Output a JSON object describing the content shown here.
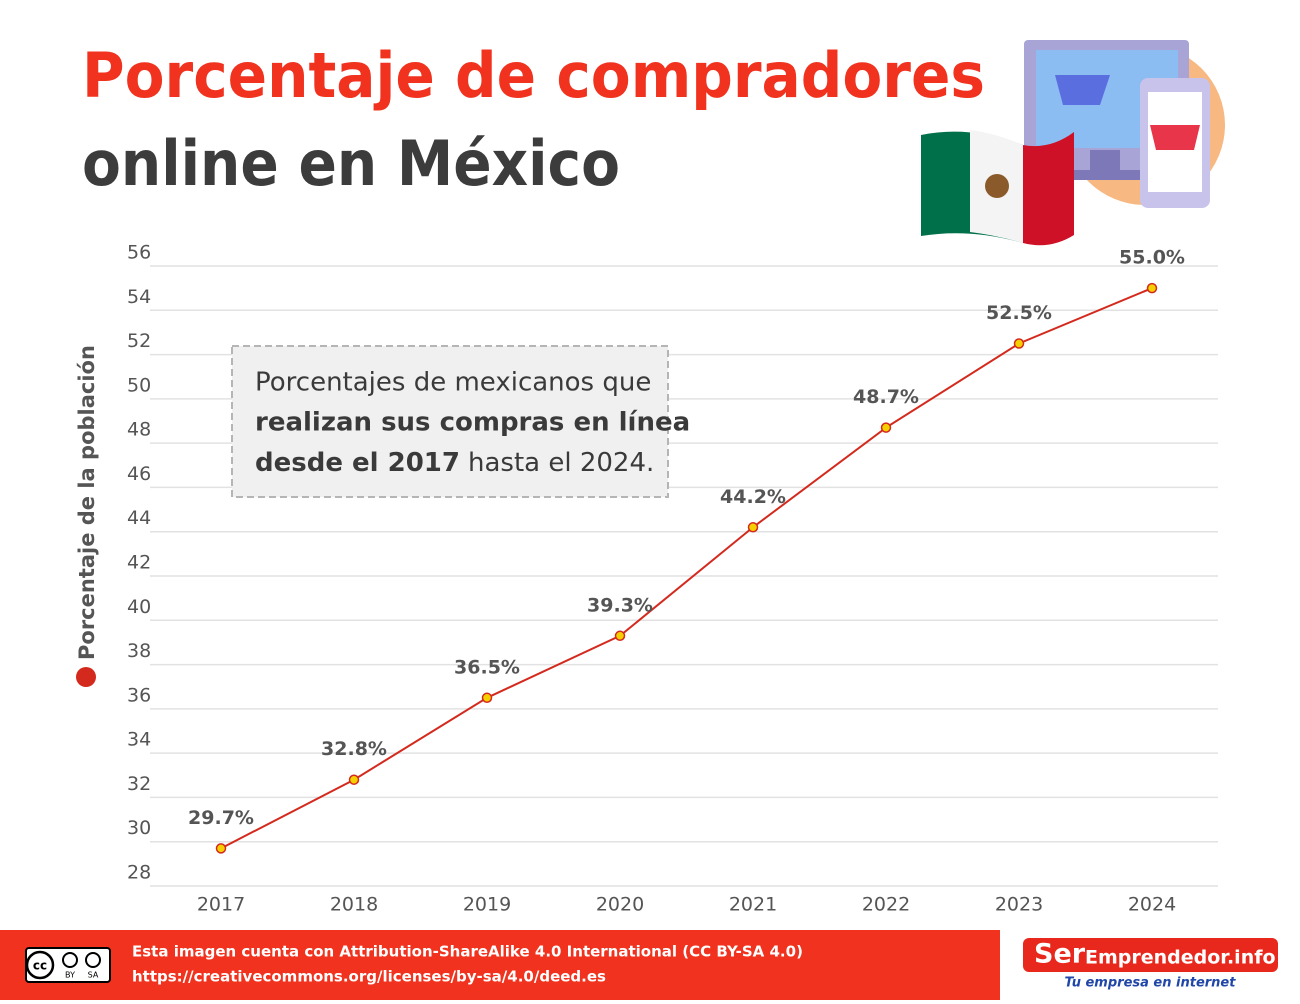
{
  "chart_data": {
    "type": "line",
    "title": "Porcentaje de compradores",
    "subtitle": "online en México",
    "categories": [
      "2017",
      "2018",
      "2019",
      "2020",
      "2021",
      "2022",
      "2023",
      "2024"
    ],
    "series": [
      {
        "name": "Porcentaje de la población",
        "color": "#d42a1e",
        "values": [
          29.7,
          32.8,
          36.5,
          39.3,
          44.2,
          48.7,
          52.5,
          55.0
        ],
        "value_labels": [
          "29.7%",
          "32.8%",
          "36.5%",
          "39.3%",
          "44.2%",
          "48.7%",
          "52.5%",
          "55.0%"
        ]
      }
    ],
    "ylim": [
      28,
      56
    ],
    "yticks": [
      28,
      30,
      32,
      34,
      36,
      38,
      40,
      42,
      44,
      46,
      48,
      50,
      52,
      54,
      56
    ],
    "grid": true,
    "annotation": {
      "line1": "Porcentajes de mexicanos que",
      "line2": "realizan sus compras en línea",
      "line3_bold": "desde el 2017",
      "line3": "hasta el 2024."
    }
  },
  "footer": {
    "license": "Esta imagen cuenta con Attribution-ShareAlike 4.0 International (CC BY-SA 4.0)",
    "url": "https://creativecommons.org/licenses/by-sa/4.0/deed.es",
    "badge": {
      "cc": "cc",
      "by": "BY",
      "sa": "SA"
    },
    "logo": {
      "ser": "Ser",
      "name": "Emprendedor.info",
      "tagline": "Tu empresa en internet"
    }
  }
}
